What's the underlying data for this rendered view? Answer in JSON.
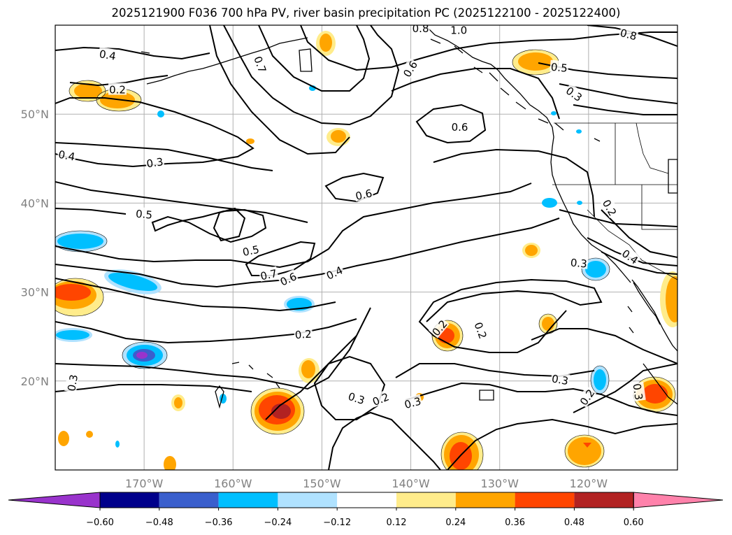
{
  "title": "2025121900 F036 700 hPa PV, river basin precipitation PC (2025122100 - 2025122400)",
  "map": {
    "lon_range": [
      -180,
      -110
    ],
    "lat_range": [
      10,
      60
    ],
    "lon_ticks": [
      {
        "lon": -170,
        "label": "170°W"
      },
      {
        "lon": -160,
        "label": "160°W"
      },
      {
        "lon": -150,
        "label": "150°W"
      },
      {
        "lon": -140,
        "label": "140°W"
      },
      {
        "lon": -130,
        "label": "130°W"
      },
      {
        "lon": -120,
        "label": "120°W"
      }
    ],
    "lat_ticks": [
      {
        "lat": 50,
        "label": "50°N"
      },
      {
        "lat": 40,
        "label": "40°N"
      },
      {
        "lat": 30,
        "label": "30°N"
      },
      {
        "lat": 20,
        "label": "20°N"
      }
    ],
    "contour_labels": [
      {
        "text": "0.4",
        "lon": -174.1,
        "lat": 56.7,
        "angle": 10
      },
      {
        "text": "0.2",
        "lon": -173.0,
        "lat": 52.8,
        "angle": 0
      },
      {
        "text": "0.4",
        "lon": -178.7,
        "lat": 45.4,
        "angle": 10
      },
      {
        "text": "0.3",
        "lon": -168.8,
        "lat": 44.6,
        "angle": -8
      },
      {
        "text": "0.5",
        "lon": -170.0,
        "lat": 38.8,
        "angle": 5
      },
      {
        "text": "0.5",
        "lon": -158.0,
        "lat": 34.7,
        "angle": -12
      },
      {
        "text": "0.7",
        "lon": -156.0,
        "lat": 32.0,
        "angle": -12
      },
      {
        "text": "0.6",
        "lon": -153.8,
        "lat": 31.5,
        "angle": -25
      },
      {
        "text": "0.4",
        "lon": -148.6,
        "lat": 32.2,
        "angle": -25
      },
      {
        "text": "0.7",
        "lon": -156.9,
        "lat": 55.6,
        "angle": 70
      },
      {
        "text": "0.8",
        "lon": -138.9,
        "lat": 59.7,
        "angle": 0
      },
      {
        "text": "1.0",
        "lon": -134.6,
        "lat": 59.5,
        "angle": 0
      },
      {
        "text": "0.6",
        "lon": -140.1,
        "lat": 55.1,
        "angle": -58
      },
      {
        "text": "0.6",
        "lon": -134.5,
        "lat": 48.6,
        "angle": 0
      },
      {
        "text": "0.6",
        "lon": -145.3,
        "lat": 41.0,
        "angle": -12
      },
      {
        "text": "0.8",
        "lon": -115.5,
        "lat": 59.0,
        "angle": 15
      },
      {
        "text": "0.5",
        "lon": -123.3,
        "lat": 55.3,
        "angle": 5
      },
      {
        "text": "0.3",
        "lon": -121.6,
        "lat": 52.3,
        "angle": 35
      },
      {
        "text": "0.2",
        "lon": -117.6,
        "lat": 39.5,
        "angle": 60
      },
      {
        "text": "0.4",
        "lon": -115.3,
        "lat": 34.0,
        "angle": 35
      },
      {
        "text": "0.3",
        "lon": -121.1,
        "lat": 33.3,
        "angle": 5
      },
      {
        "text": "0.2",
        "lon": -152.1,
        "lat": 25.3,
        "angle": -4
      },
      {
        "text": "0.2",
        "lon": -136.8,
        "lat": 26.0,
        "angle": -50
      },
      {
        "text": "0.2",
        "lon": -132.1,
        "lat": 25.7,
        "angle": 70
      },
      {
        "text": "0.3",
        "lon": -178.1,
        "lat": 19.8,
        "angle": -80
      },
      {
        "text": "0.3",
        "lon": -146.1,
        "lat": 18.1,
        "angle": 18
      },
      {
        "text": "0.2",
        "lon": -143.4,
        "lat": 18.0,
        "angle": -22
      },
      {
        "text": "0.3",
        "lon": -139.8,
        "lat": 17.6,
        "angle": -15
      },
      {
        "text": "0.3",
        "lon": -123.2,
        "lat": 20.2,
        "angle": 10
      },
      {
        "text": "0.2",
        "lon": -120.2,
        "lat": 18.2,
        "angle": -55
      },
      {
        "text": "0.3",
        "lon": -114.4,
        "lat": 18.8,
        "angle": 82
      }
    ]
  },
  "colorbar": {
    "colors": [
      "#9933cc",
      "#00008b",
      "#3a5fcd",
      "#00bfff",
      "#b0e2ff",
      "#ffffff",
      "#ffec8b",
      "#ffa500",
      "#ff4500",
      "#b22222",
      "#ff82ab"
    ],
    "tick_labels": [
      "−0.60",
      "−0.48",
      "−0.36",
      "−0.24",
      "−0.12",
      "0.12",
      "0.24",
      "0.36",
      "0.48",
      "0.60"
    ]
  }
}
